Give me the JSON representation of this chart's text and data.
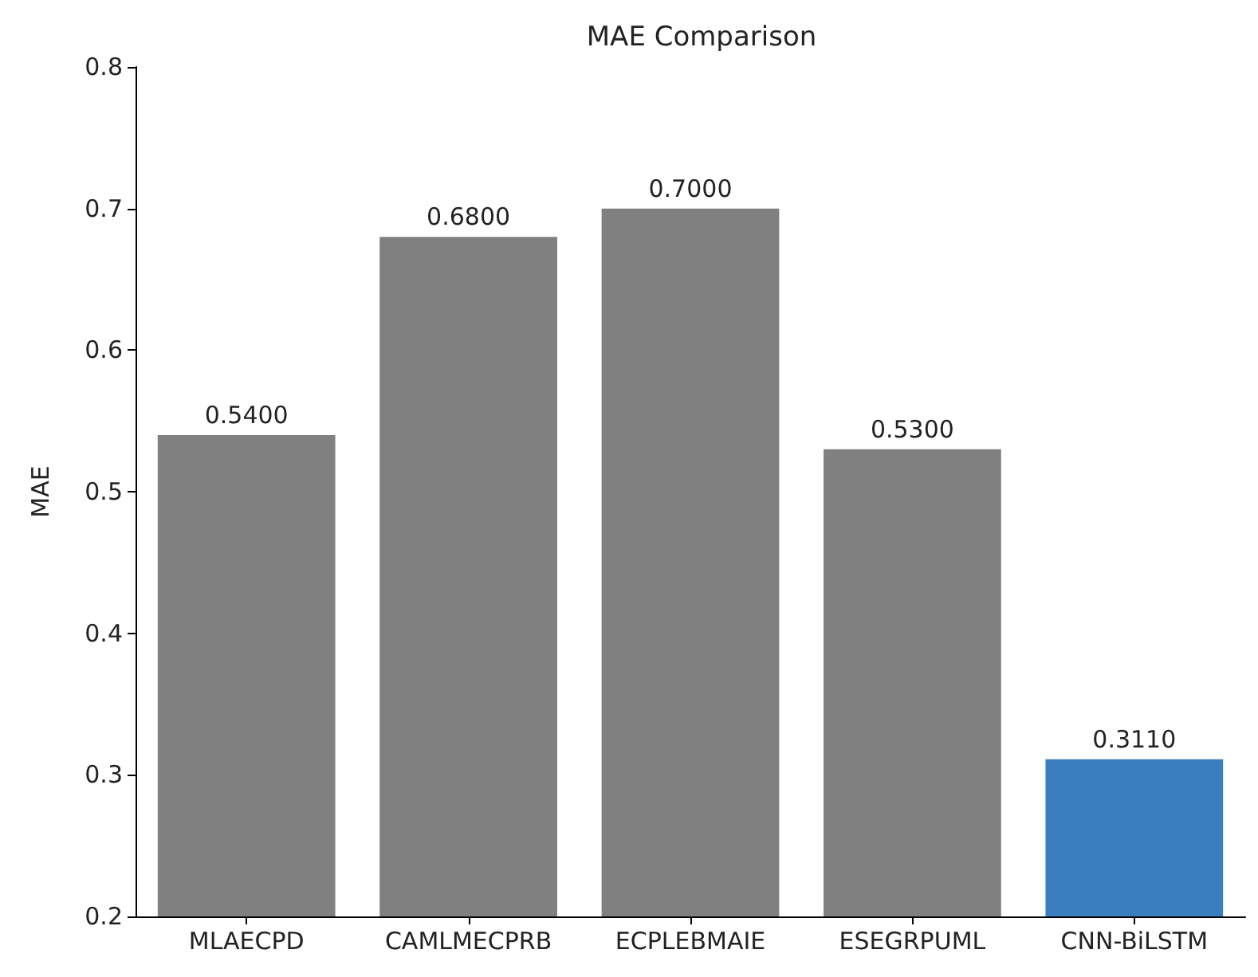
{
  "chart_data": {
    "type": "bar",
    "title": "MAE Comparison",
    "ylabel": "MAE",
    "categories": [
      "MLAECPD",
      "CAMLMECPRB",
      "ECPLEBMAIE",
      "ESEGRPUML",
      "CNN-BiLSTM"
    ],
    "values": [
      0.54,
      0.68,
      0.7,
      0.53,
      0.311
    ],
    "colors": [
      "#808080",
      "#808080",
      "#808080",
      "#808080",
      "#3a7ebf"
    ],
    "value_labels": [
      "0.5400",
      "0.6800",
      "0.7000",
      "0.5300",
      "0.3110"
    ],
    "ylim": [
      0.2,
      0.8
    ],
    "yticks": [
      0.2,
      0.3,
      0.4,
      0.5,
      0.6,
      0.7,
      0.8
    ],
    "grid": false
  }
}
